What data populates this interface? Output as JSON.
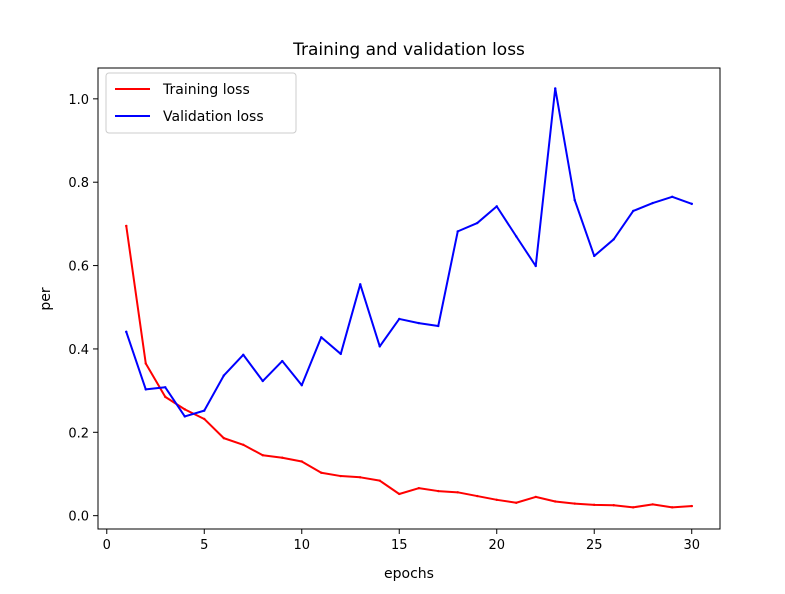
{
  "chart_data": {
    "type": "line",
    "title": "Training and validation loss",
    "xlabel": "epochs",
    "ylabel": "per",
    "xlim": [
      -0.45,
      31.45
    ],
    "ylim": [
      -0.032,
      1.074
    ],
    "xticks": [
      0,
      5,
      10,
      15,
      20,
      25,
      30
    ],
    "yticks": [
      0.0,
      0.2,
      0.4,
      0.6,
      0.8,
      1.0
    ],
    "ytick_labels": [
      "0.0",
      "0.2",
      "0.4",
      "0.6",
      "0.8",
      "1.0"
    ],
    "grid": false,
    "legend_position": "upper-left",
    "x": [
      1,
      2,
      3,
      4,
      5,
      6,
      7,
      8,
      9,
      10,
      11,
      12,
      13,
      14,
      15,
      16,
      17,
      18,
      19,
      20,
      21,
      22,
      23,
      24,
      25,
      26,
      27,
      28,
      29,
      30
    ],
    "series": [
      {
        "name": "Training loss",
        "color": "#ff0000",
        "values": [
          0.695,
          0.365,
          0.285,
          0.255,
          0.232,
          0.186,
          0.17,
          0.145,
          0.139,
          0.13,
          0.103,
          0.095,
          0.092,
          0.084,
          0.052,
          0.066,
          0.059,
          0.056,
          0.047,
          0.038,
          0.031,
          0.045,
          0.034,
          0.029,
          0.026,
          0.025,
          0.02,
          0.027,
          0.02,
          0.023
        ]
      },
      {
        "name": "Validation loss",
        "color": "#0000ff",
        "values": [
          0.441,
          0.303,
          0.308,
          0.238,
          0.252,
          0.336,
          0.386,
          0.323,
          0.371,
          0.313,
          0.428,
          0.388,
          0.555,
          0.406,
          0.472,
          0.462,
          0.455,
          0.682,
          0.702,
          0.742,
          0.67,
          0.599,
          1.025,
          0.757,
          0.623,
          0.663,
          0.731,
          0.75,
          0.765,
          0.748
        ]
      }
    ]
  }
}
